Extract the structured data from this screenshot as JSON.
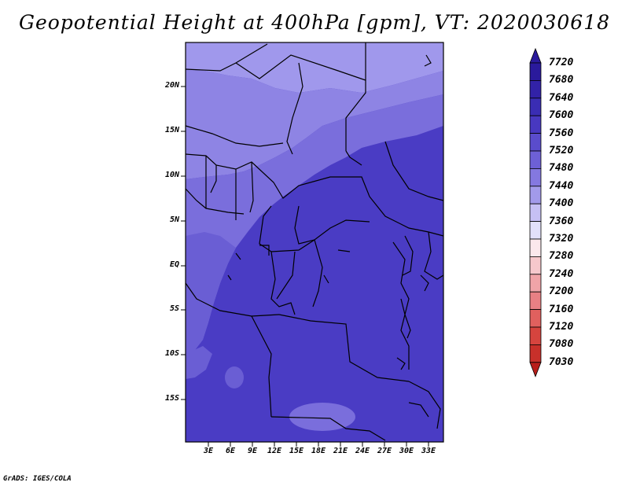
{
  "title": "Geopotential Height at 400hPa [gpm], VT: 2020030618",
  "credit": "GrADS: IGES/COLA",
  "lat_labels": [
    "20N",
    "15N",
    "10N",
    "5N",
    "EQ",
    "5S",
    "10S",
    "15S"
  ],
  "lon_labels": [
    "3E",
    "6E",
    "9E",
    "12E",
    "15E",
    "18E",
    "21E",
    "24E",
    "27E",
    "30E",
    "33E"
  ],
  "colorbar": {
    "levels": [
      "7720",
      "7680",
      "7640",
      "7600",
      "7560",
      "7520",
      "7480",
      "7440",
      "7400",
      "7360",
      "7320",
      "7280",
      "7240",
      "7200",
      "7160",
      "7120",
      "7080",
      "7030"
    ],
    "colors": [
      "#2a1a9c",
      "#3222a8",
      "#3a2db4",
      "#4838c0",
      "#5a4ccc",
      "#6d60d6",
      "#8478e0",
      "#a29aea",
      "#c6c0f4",
      "#e2e0fa",
      "#fbe8ec",
      "#f6c8cc",
      "#f0a4a8",
      "#e88084",
      "#e0605e",
      "#d6443e",
      "#c8302a",
      "#b81e1a"
    ]
  },
  "colors": {
    "map_dark": "#4a3cc4",
    "map_mid": "#5f52d0",
    "map_light": "#7a6edc",
    "map_lighter": "#8e84e4",
    "map_lightest": "#a098ec"
  }
}
